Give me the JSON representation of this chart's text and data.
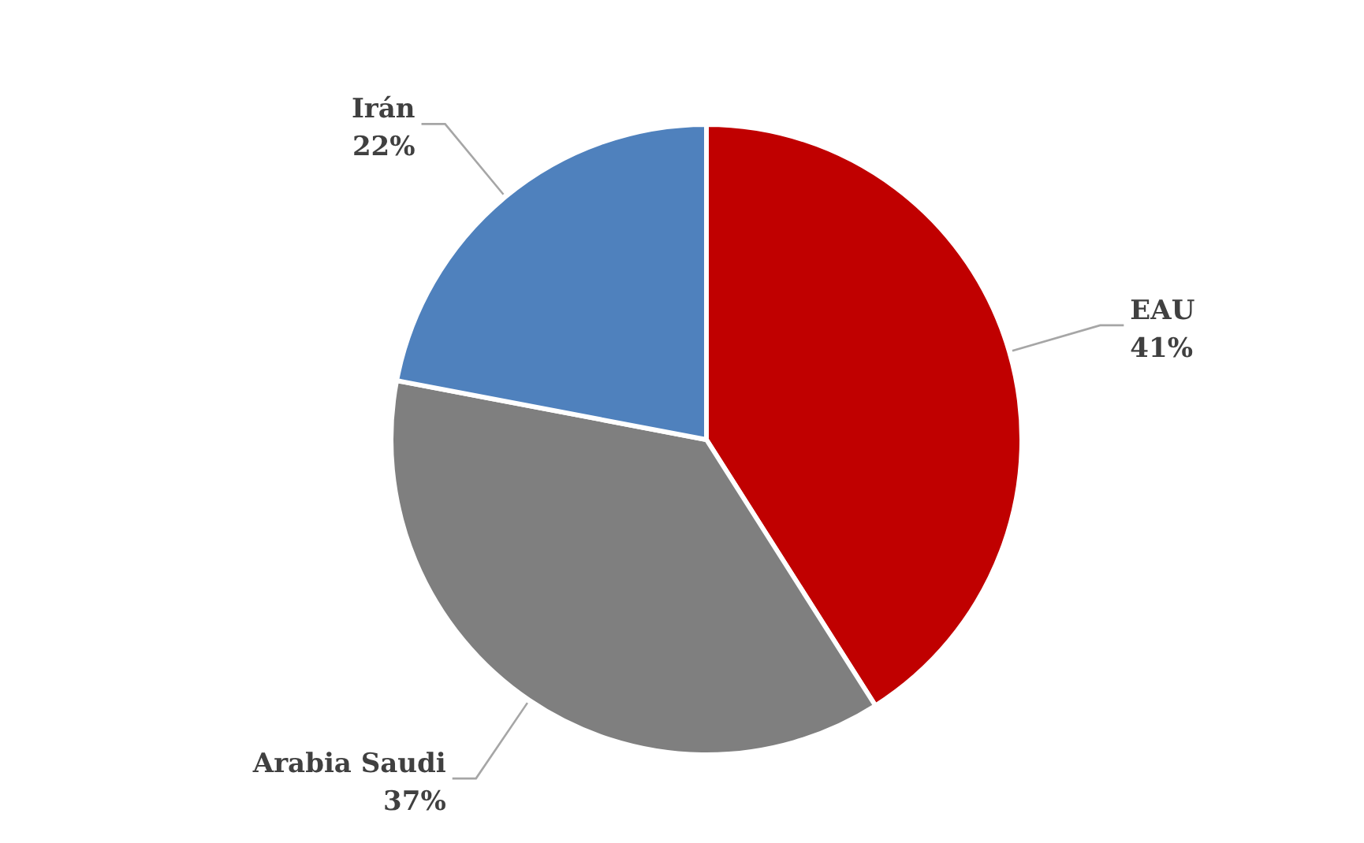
{
  "chart_data": {
    "type": "pie",
    "categories": [
      "EAU",
      "Arabia Saudi",
      "Irán"
    ],
    "values": [
      41,
      37,
      22
    ],
    "value_labels": [
      "41%",
      "37%",
      "22%"
    ],
    "colors": [
      "#c00000",
      "#7f7f7f",
      "#4f81bd"
    ]
  }
}
